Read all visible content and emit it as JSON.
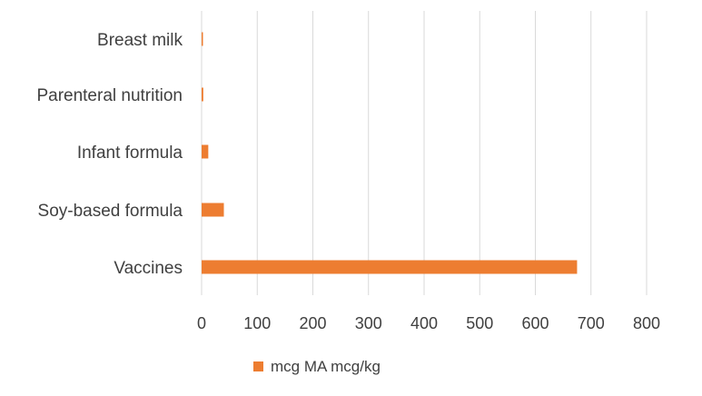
{
  "chart_data": {
    "type": "bar",
    "orientation": "horizontal",
    "categories": [
      "Breast milk",
      "Parenteral nutrition",
      "Infant formula",
      "Soy-based formula",
      "Vaccines"
    ],
    "series": [
      {
        "name": "mcg MA mcg/kg",
        "values": [
          2,
          3,
          12,
          40,
          675
        ]
      }
    ],
    "xlim": [
      0,
      800
    ],
    "xticks": [
      0,
      100,
      200,
      300,
      400,
      500,
      600,
      700,
      800
    ],
    "grid": "vertical",
    "legend_position": "bottom",
    "colors": {
      "bar": "#ED7D31"
    }
  }
}
